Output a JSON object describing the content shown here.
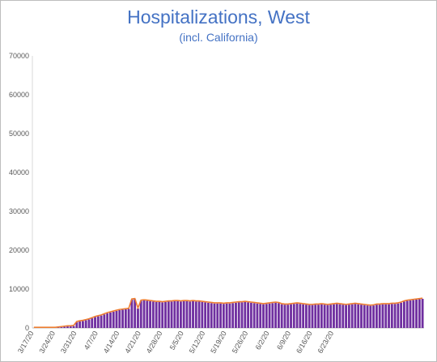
{
  "chart_data": {
    "type": "bar",
    "title": "Hospitalizations, West",
    "subtitle": "(incl. California)",
    "xlabel": "",
    "ylabel": "",
    "ylim": [
      0,
      70000
    ],
    "yticks": [
      0,
      10000,
      20000,
      30000,
      40000,
      50000,
      60000,
      70000
    ],
    "grid": false,
    "legend": "none",
    "x_start": "3/17/20",
    "x_tick_labels": [
      "3/17/20",
      "3/24/20",
      "3/31/20",
      "4/7/20",
      "4/14/20",
      "4/21/20",
      "4/28/20",
      "5/5/20",
      "5/12/20",
      "5/19/20",
      "5/26/20",
      "6/2/20",
      "6/9/20",
      "6/16/20",
      "6/23/20"
    ],
    "series": [
      {
        "type": "bar",
        "color": "#7030a0",
        "values": [
          0,
          0,
          0,
          0,
          0,
          0,
          0,
          0,
          100,
          200,
          300,
          400,
          400,
          500,
          1500,
          1700,
          1800,
          2000,
          2200,
          2500,
          2800,
          3000,
          3200,
          3500,
          3800,
          4000,
          4200,
          4400,
          4600,
          4700,
          4800,
          4900,
          7300,
          7400,
          5000,
          7000,
          7100,
          7000,
          6900,
          6800,
          6700,
          6700,
          6600,
          6700,
          6800,
          6800,
          6900,
          6900,
          6800,
          6900,
          6900,
          6800,
          6900,
          6800,
          6800,
          6700,
          6600,
          6500,
          6400,
          6300,
          6300,
          6300,
          6200,
          6300,
          6300,
          6400,
          6500,
          6600,
          6600,
          6700,
          6600,
          6500,
          6400,
          6300,
          6200,
          6100,
          6200,
          6300,
          6400,
          6500,
          6400,
          6100,
          6000,
          6000,
          6100,
          6200,
          6300,
          6200,
          6100,
          6000,
          5900,
          5900,
          6000,
          6000,
          6100,
          6000,
          5900,
          6000,
          6100,
          6200,
          6100,
          6000,
          5900,
          6000,
          6100,
          6200,
          6100,
          6000,
          5900,
          5800,
          5700,
          5800,
          6000,
          6000,
          6100,
          6100,
          6100,
          6200,
          6200,
          6300,
          6500,
          6800,
          7000,
          7100,
          7200,
          7300,
          7400,
          7500
        ]
      },
      {
        "type": "line",
        "color": "#ed7d31",
        "follows": "bar values"
      }
    ]
  }
}
